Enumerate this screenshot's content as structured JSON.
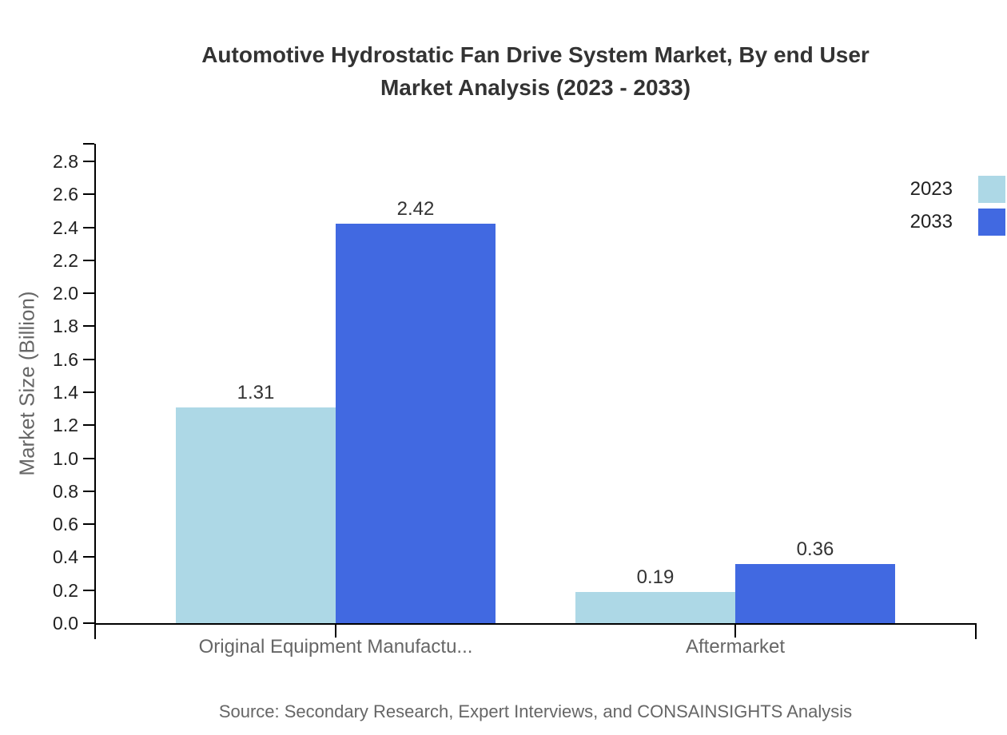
{
  "title": {
    "line1": "Automotive Hydrostatic Fan Drive System Market, By end User",
    "line2": "Market Analysis (2023 - 2033)"
  },
  "source": "Source: Secondary Research, Expert Interviews, and CONSAINSIGHTS Analysis",
  "colors": {
    "series_2023": "#ADD8E6",
    "series_2033": "#4169E1",
    "axis": "#000000",
    "title_text": "#333333",
    "muted_text": "#666666",
    "tick_text": "#212121"
  },
  "chart_data": {
    "type": "bar",
    "title": "Automotive Hydrostatic Fan Drive System Market, By end User Market Analysis (2023 - 2033)",
    "categories": [
      "Original Equipment Manufactu...",
      "Aftermarket"
    ],
    "series": [
      {
        "name": "2023",
        "color": "#ADD8E6",
        "values": [
          1.31,
          0.19
        ]
      },
      {
        "name": "2033",
        "color": "#4169E1",
        "values": [
          2.42,
          0.36
        ]
      }
    ],
    "xlabel": "",
    "ylabel": "Market Size (Billion)",
    "ylim": [
      0,
      2.8
    ],
    "ytick_step": 0.2,
    "grid": false,
    "legend_position": "top-right",
    "value_label_decimals": 2
  }
}
